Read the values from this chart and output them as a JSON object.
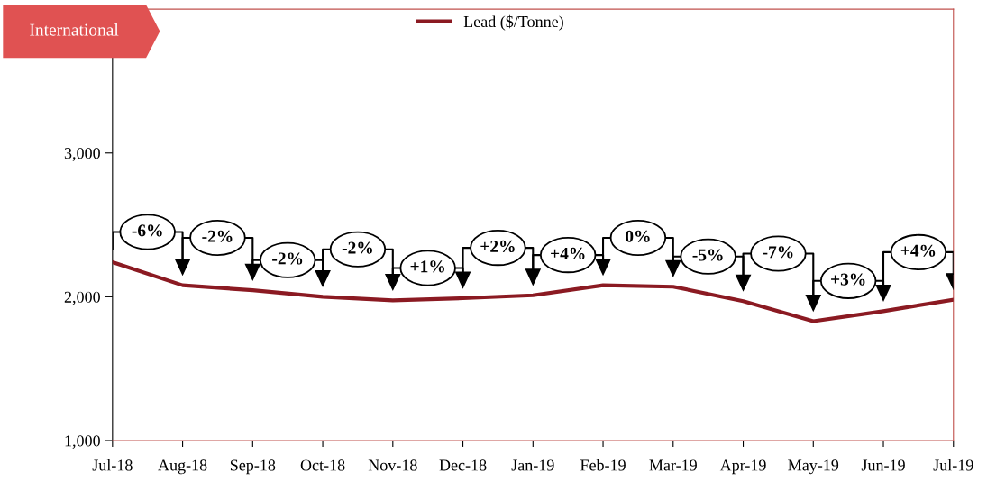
{
  "chart_data": {
    "type": "line",
    "title": "International",
    "categories": [
      "Jul-18",
      "Aug-18",
      "Sep-18",
      "Oct-18",
      "Nov-18",
      "Dec-18",
      "Jan-19",
      "Feb-19",
      "Mar-19",
      "Apr-19",
      "May-19",
      "Jun-19",
      "Jul-19"
    ],
    "series": [
      {
        "name": "Lead ($/Tonne)",
        "color": "#8b1a22",
        "values": [
          2240,
          2080,
          2045,
          2000,
          1975,
          1990,
          2010,
          2080,
          2070,
          1970,
          1830,
          1900,
          1980
        ]
      }
    ],
    "ylim": [
      1000,
      4000
    ],
    "yticks": [
      {
        "value": 1000,
        "label": "1,000"
      },
      {
        "value": 2000,
        "label": "2,000"
      },
      {
        "value": 3000,
        "label": "3,000"
      }
    ],
    "annotations": [
      "-6%",
      "-2%",
      "-2%",
      "-2%",
      "+1%",
      "+2%",
      "+4%",
      "0%",
      "-5%",
      "-7%",
      "+3%",
      "+4%"
    ],
    "legend": "top",
    "grid": false,
    "marker": "none",
    "line_style": "solid"
  }
}
